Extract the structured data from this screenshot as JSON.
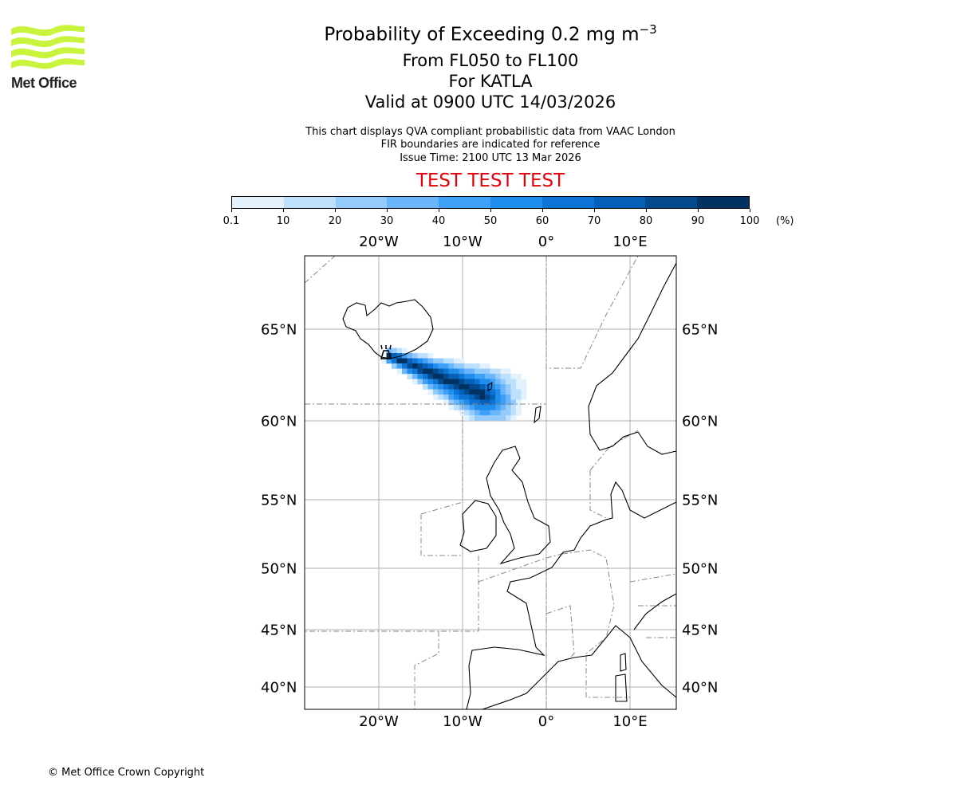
{
  "logo": {
    "text": "Met Office",
    "color": "#c8f53c"
  },
  "header": {
    "title": "Probability of Exceeding 0.2 mg m",
    "title_sup": "−3",
    "levels": "From FL050 to FL100",
    "volcano": "For KATLA",
    "valid": "Valid at 0900 UTC 14/03/2026",
    "note1": "This chart displays QVA compliant probabilistic data from VAAC London",
    "note2": "FIR boundaries are indicated for reference",
    "issue": "Issue Time: 2100 UTC 13 Mar 2026",
    "test": "TEST TEST TEST"
  },
  "chart_data": {
    "type": "heatmap",
    "title": "Probability of Exceeding 0.2 mg m−3",
    "colorbar": {
      "ticks": [
        "0.1",
        "10",
        "20",
        "30",
        "40",
        "50",
        "60",
        "70",
        "80",
        "90",
        "100"
      ],
      "unit": "(%)",
      "colors": [
        "#e3f1fd",
        "#bde0fc",
        "#94cbfb",
        "#6bb6fa",
        "#3fa0f8",
        "#1e8deb",
        "#0d74d6",
        "#0561b8",
        "#034a8f",
        "#023262"
      ]
    },
    "lon_ticks": [
      {
        "value": -20,
        "label": "20°W"
      },
      {
        "value": -10,
        "label": "10°W"
      },
      {
        "value": 0,
        "label": "0°"
      },
      {
        "value": 10,
        "label": "10°E"
      }
    ],
    "lat_ticks": [
      {
        "value": 65,
        "label": "65°N"
      },
      {
        "value": 60,
        "label": "60°N"
      },
      {
        "value": 55,
        "label": "55°N"
      },
      {
        "value": 50,
        "label": "50°N"
      },
      {
        "value": 45,
        "label": "45°N"
      },
      {
        "value": 40,
        "label": "40°N"
      }
    ],
    "plume": {
      "source_lon": -19.0,
      "source_lat": 63.6,
      "end_lon": -6.0,
      "end_lat": 61.5,
      "max_probability_pct": 100
    }
  },
  "footer": {
    "copyright": "© Met Office Crown Copyright"
  }
}
